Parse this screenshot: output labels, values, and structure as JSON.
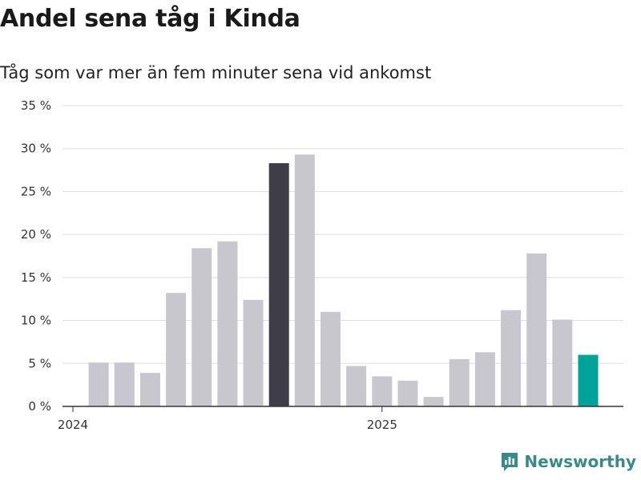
{
  "title": "Andel sena tåg i Kinda",
  "subtitle": "Tåg som var mer än fem minuter sena vid ankomst",
  "brand": {
    "name": "Newsworthy",
    "color": "#3a8a8a",
    "icon": "bar-chart-icon"
  },
  "colors": {
    "default": "#c8c6cf",
    "highlight": "#3e3d48",
    "latest": "#00a39a",
    "grid": "#dddddd",
    "axis": "#333333"
  },
  "chart_data": {
    "type": "bar",
    "title": "Andel sena tåg i Kinda",
    "subtitle": "Tåg som var mer än fem minuter sena vid ankomst",
    "xlabel": "",
    "ylabel": "",
    "ylim": [
      0,
      35
    ],
    "yticks": [
      0,
      5,
      10,
      15,
      20,
      25,
      30,
      35
    ],
    "ytick_labels": [
      "0 %",
      "5 %",
      "10 %",
      "15 %",
      "20 %",
      "25 %",
      "30 %",
      "35 %"
    ],
    "x_labels": [
      {
        "label": "2024",
        "position": 0
      },
      {
        "label": "2025",
        "position": 12
      }
    ],
    "categories": [
      "2024-01",
      "2024-02",
      "2024-03",
      "2024-04",
      "2024-05",
      "2024-06",
      "2024-07",
      "2024-08",
      "2024-09",
      "2024-10",
      "2024-11",
      "2024-12",
      "2025-01",
      "2025-02",
      "2025-03",
      "2025-04",
      "2025-05",
      "2025-06",
      "2025-07",
      "2025-08",
      "2025-09"
    ],
    "values": [
      0,
      5.1,
      5.1,
      3.9,
      13.2,
      18.4,
      19.2,
      12.4,
      28.3,
      29.3,
      11.0,
      4.7,
      3.5,
      3.0,
      1.1,
      5.5,
      6.3,
      11.2,
      17.8,
      10.1,
      6.0
    ],
    "highlight_index": 8,
    "latest_index": 20,
    "grid": true,
    "legend": "none"
  }
}
